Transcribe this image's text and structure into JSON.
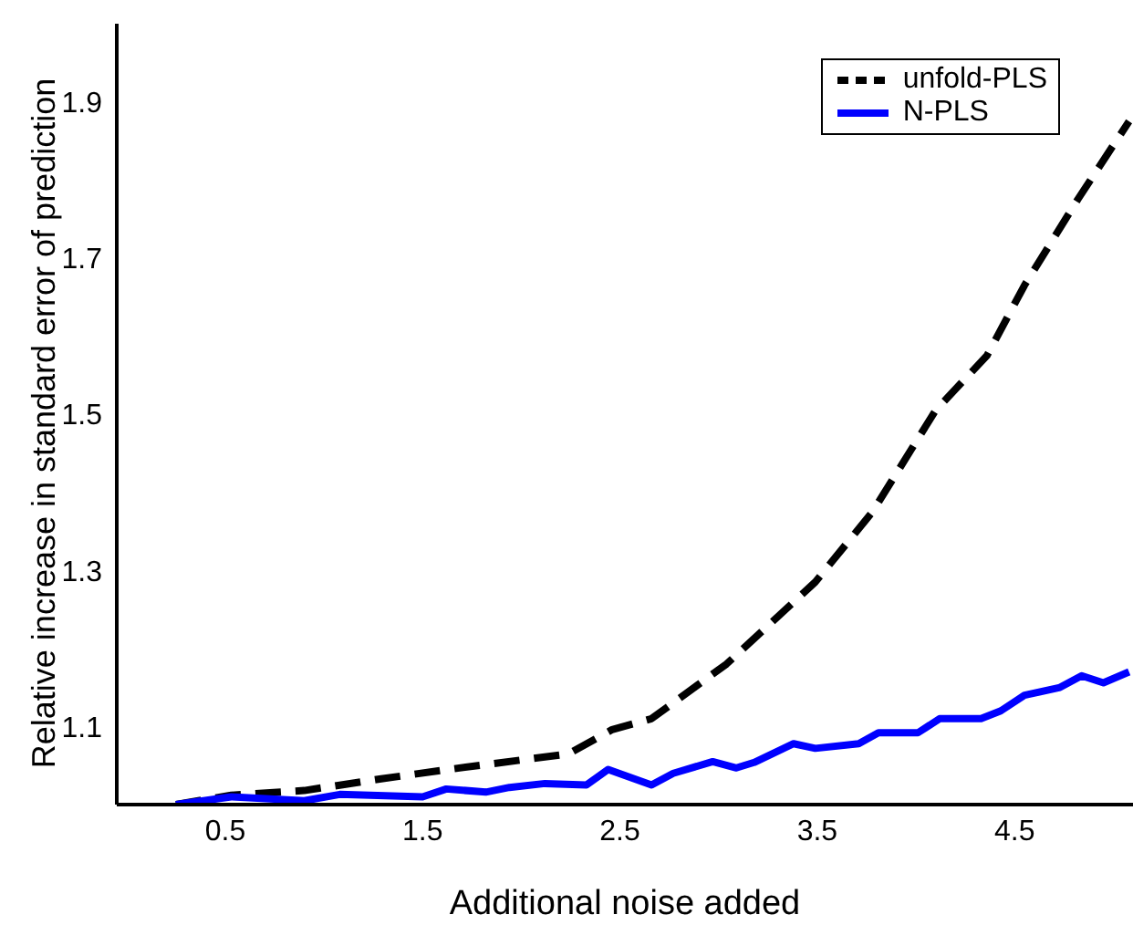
{
  "chart_data": {
    "type": "line",
    "xlabel": "Additional noise added",
    "ylabel": "Relative increase in standard error of prediction",
    "xlim": [
      -0.05,
      5.1
    ],
    "xticks": [
      0.5,
      1.5,
      2.5,
      3.5,
      4.5
    ],
    "ylim": [
      1.0,
      2.0
    ],
    "yticks": [
      1.1,
      1.3,
      1.5,
      1.7,
      1.9
    ],
    "grid": false,
    "legend": "top right",
    "marker": "none",
    "series": [
      {
        "name": "unfold-PLS",
        "color": "#000000",
        "line_style": "dashed",
        "x": [
          0.25,
          0.53,
          0.9,
          1.29,
          1.63,
          2.24,
          2.46,
          2.66,
          3.04,
          3.49,
          3.78,
          4.1,
          4.36,
          4.55,
          4.82,
          5.08
        ],
        "values": [
          1.0,
          1.012,
          1.018,
          1.033,
          1.045,
          1.065,
          1.096,
          1.11,
          1.18,
          1.285,
          1.375,
          1.505,
          1.575,
          1.665,
          1.775,
          1.875
        ]
      },
      {
        "name": "N-PLS",
        "color": "#0000ff",
        "line_style": "solid",
        "x": [
          0.25,
          0.53,
          0.9,
          1.08,
          1.5,
          1.62,
          1.82,
          1.94,
          2.12,
          2.33,
          2.44,
          2.66,
          2.77,
          2.97,
          3.09,
          3.18,
          3.38,
          3.49,
          3.71,
          3.81,
          4.01,
          4.12,
          4.33,
          4.43,
          4.55,
          4.73,
          4.84,
          4.95,
          5.08
        ],
        "values": [
          1.0,
          1.01,
          1.005,
          1.013,
          1.01,
          1.02,
          1.016,
          1.022,
          1.027,
          1.025,
          1.045,
          1.025,
          1.04,
          1.055,
          1.047,
          1.054,
          1.078,
          1.072,
          1.078,
          1.092,
          1.092,
          1.11,
          1.11,
          1.12,
          1.14,
          1.15,
          1.165,
          1.156,
          1.17
        ]
      }
    ]
  }
}
